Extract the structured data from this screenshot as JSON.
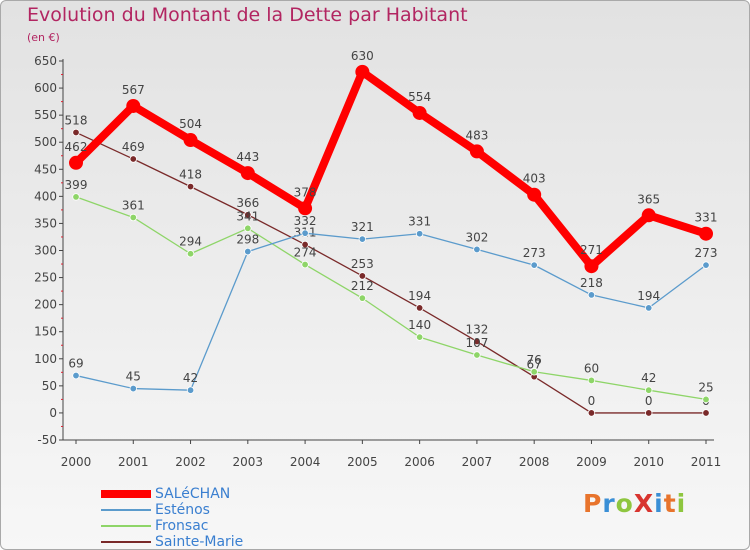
{
  "chart_data": {
    "type": "line",
    "title": "Evolution du Montant de la Dette par Habitant",
    "unit_label": "(en €)",
    "x": [
      "2000",
      "2001",
      "2002",
      "2003",
      "2004",
      "2005",
      "2006",
      "2007",
      "2008",
      "2009",
      "2010",
      "2011"
    ],
    "ylim": [
      -50,
      650
    ],
    "yticks": [
      "-50",
      "0",
      "50",
      "100",
      "150",
      "200",
      "250",
      "300",
      "350",
      "400",
      "450",
      "500",
      "550",
      "600",
      "650"
    ],
    "grid": false,
    "legend_position": "bottom-left",
    "series": [
      {
        "name": "SALéCHAN",
        "color": "#ff0000",
        "values": [
          462,
          567,
          504,
          443,
          378,
          630,
          554,
          483,
          403,
          271,
          365,
          331
        ],
        "labels": [
          "462",
          "567",
          "504",
          "443",
          "378",
          "630",
          "554",
          "483",
          "403",
          "271",
          "365",
          "331"
        ]
      },
      {
        "name": "Esténos",
        "color": "#5b9bcc",
        "values": [
          69,
          45,
          42,
          298,
          332,
          321,
          331,
          302,
          273,
          218,
          194,
          273
        ],
        "labels": [
          "69",
          "45",
          "42",
          "298",
          "332",
          "321",
          "331",
          "302",
          "273",
          "218",
          "194",
          "273"
        ]
      },
      {
        "name": "Fronsac",
        "color": "#8ed568",
        "values": [
          399,
          361,
          294,
          341,
          274,
          212,
          140,
          107,
          76,
          60,
          42,
          25
        ],
        "labels": [
          "399",
          "361",
          "294",
          "341",
          "274",
          "212",
          "140",
          "107",
          "76",
          "60",
          "42",
          "25"
        ]
      },
      {
        "name": "Sainte-Marie",
        "color": "#7a2a2a",
        "values": [
          518,
          469,
          418,
          366,
          311,
          253,
          194,
          132,
          67,
          0,
          0,
          0
        ],
        "labels": [
          "518",
          "469",
          "418",
          "366",
          "311",
          "253",
          "194",
          "132",
          "67",
          "0",
          "0",
          "0"
        ]
      }
    ]
  },
  "logo": {
    "text": "ProXiti",
    "colors": [
      "#e8742c",
      "#3a8fd6",
      "#8ec63f",
      "#d8342f",
      "#3a8fd6",
      "#e8742c",
      "#8ec63f"
    ]
  }
}
